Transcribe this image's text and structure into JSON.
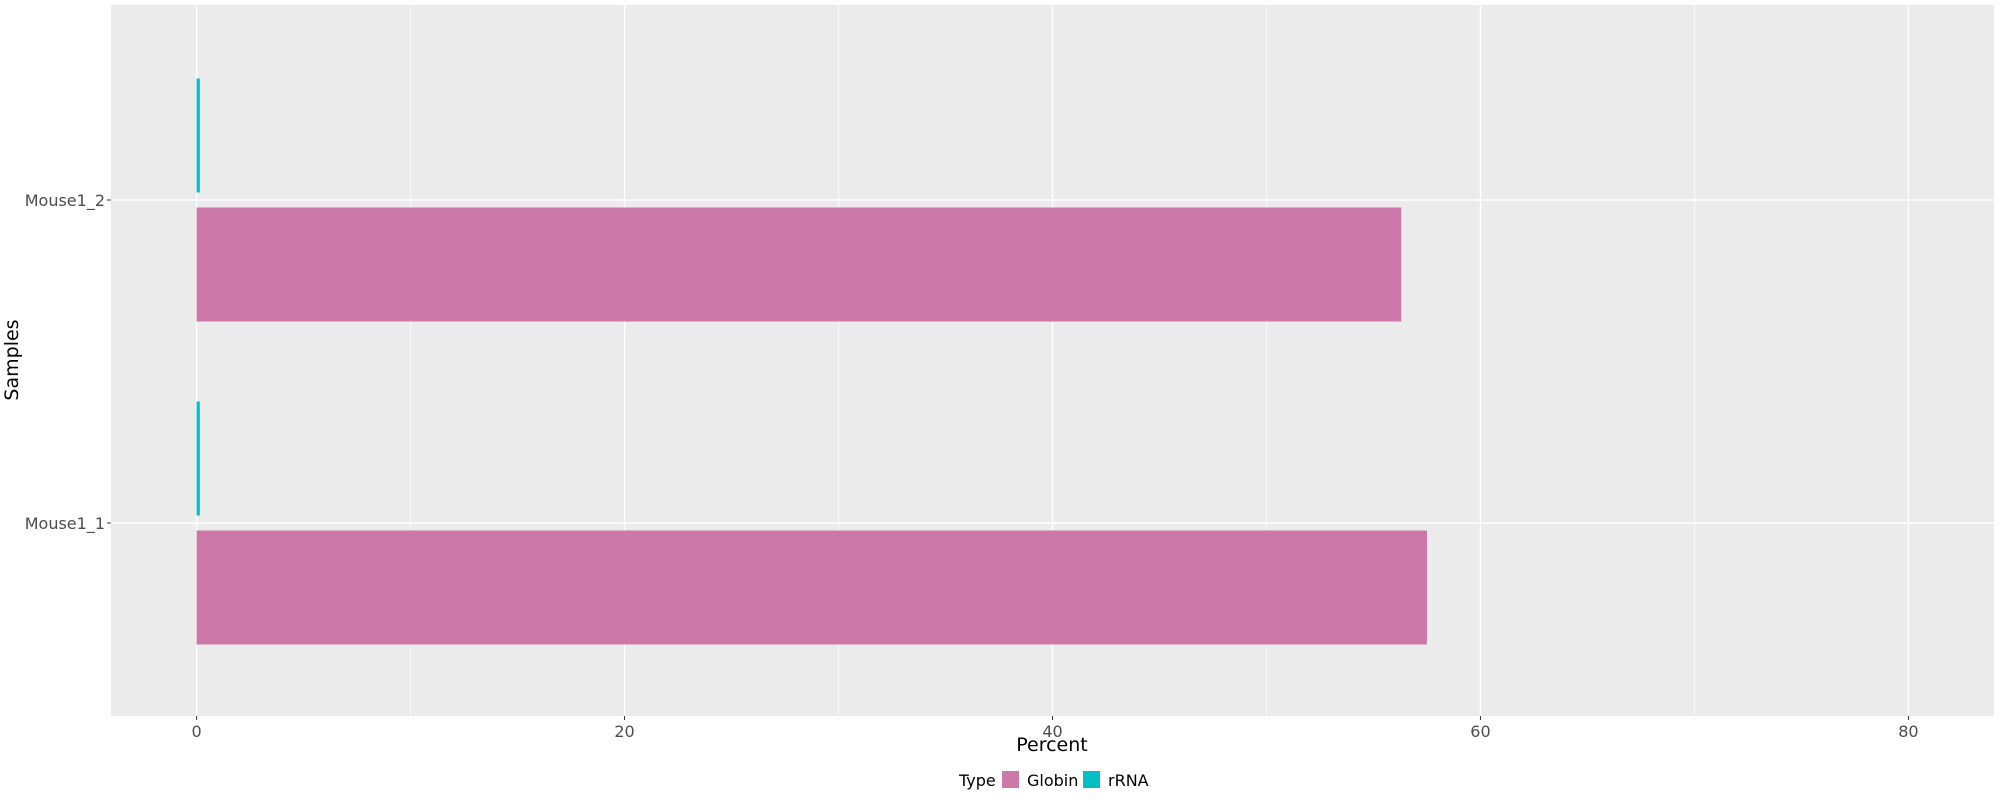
{
  "chart_data": {
    "type": "bar",
    "orientation": "horizontal",
    "categories": [
      "Mouse1_2",
      "Mouse1_1"
    ],
    "series": [
      {
        "name": "rRNA",
        "color": "#00BFC4",
        "values": [
          0.15,
          0.15
        ]
      },
      {
        "name": "Globin",
        "color": "#CC79A7",
        "values": [
          56.3,
          57.5
        ]
      }
    ],
    "xlabel": "Percent",
    "ylabel": "Samples",
    "xlim": [
      -4,
      84
    ],
    "xticks": [
      0,
      20,
      40,
      60,
      80
    ],
    "xticks_minor": [
      10,
      30,
      50,
      70
    ],
    "grid": true,
    "legend": {
      "title": "Type",
      "position": "bottom",
      "entries": [
        {
          "label": "Globin",
          "color": "#CC79A7"
        },
        {
          "label": "rRNA",
          "color": "#00BFC4"
        }
      ]
    },
    "panel_background": "#EBEBEB",
    "grid_color": "#FFFFFF"
  }
}
